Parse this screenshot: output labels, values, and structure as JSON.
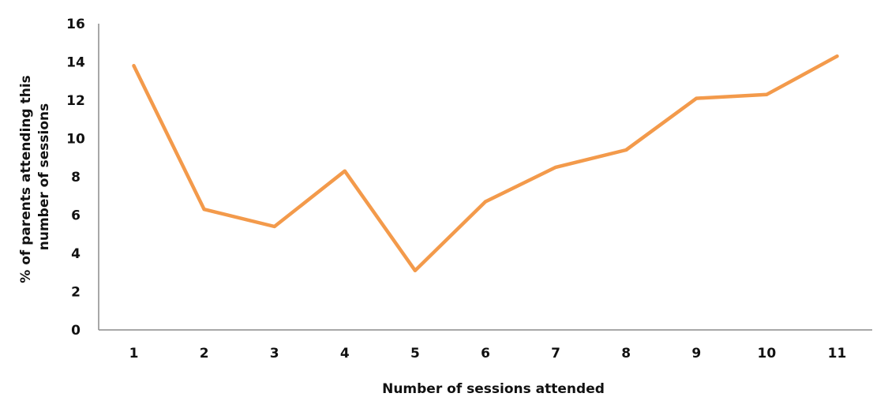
{
  "chart_data": {
    "type": "line",
    "title": "",
    "xlabel": "Number of sessions attended",
    "ylabel_lines": [
      "% of parents attending this",
      "number of sessions"
    ],
    "categories": [
      "1",
      "2",
      "3",
      "4",
      "5",
      "6",
      "7",
      "8",
      "9",
      "10",
      "11"
    ],
    "series": [
      {
        "values": [
          13.8,
          6.3,
          5.4,
          8.3,
          3.1,
          6.7,
          8.5,
          9.4,
          12.1,
          12.3,
          14.3
        ],
        "color": "#F39A4B"
      }
    ],
    "ylim": [
      0,
      16
    ],
    "yticks": [
      "0",
      "2",
      "4",
      "6",
      "8",
      "10",
      "12",
      "14",
      "16"
    ],
    "grid": false,
    "legend": "none"
  }
}
